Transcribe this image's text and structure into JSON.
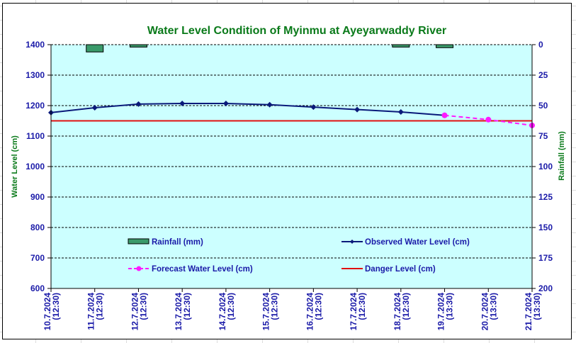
{
  "chart_data": {
    "type": "line",
    "title": "Water Level Condition of Myinmu at Ayeyarwaddy River",
    "ylabel": "Water Level (cm)",
    "y2label": "Rainfall (mm)",
    "ylim": [
      600,
      1400
    ],
    "y2lim": [
      0,
      200
    ],
    "y2_inverted": true,
    "yticks": [
      600,
      700,
      800,
      900,
      1000,
      1100,
      1200,
      1300,
      1400
    ],
    "y2ticks": [
      0,
      25,
      50,
      75,
      100,
      125,
      150,
      175,
      200
    ],
    "grid": true,
    "categories": [
      [
        "10.7.2024",
        "(12:30)"
      ],
      [
        "11.7.2024",
        "(12:30)"
      ],
      [
        "12.7.2024",
        "(12:30)"
      ],
      [
        "13.7.2024",
        "(12:30)"
      ],
      [
        "14.7.2024",
        "(12:30)"
      ],
      [
        "15.7.2024",
        "(12:30)"
      ],
      [
        "16.7.2024",
        "(12:30)"
      ],
      [
        "17.7.2024",
        "(12:30)"
      ],
      [
        "18.7.2024",
        "(12:30)"
      ],
      [
        "19.7.2024",
        "(13:30)"
      ],
      [
        "20.7.2024",
        "(13:30)"
      ],
      [
        "21.7.2024",
        "(13:30)"
      ]
    ],
    "series": [
      {
        "name": "Rainfall (mm)",
        "type": "bar",
        "axis": "right",
        "color": "#3a9a6a",
        "values": [
          0,
          6,
          2,
          0,
          0,
          0,
          0,
          0,
          2,
          2.5,
          null,
          null
        ]
      },
      {
        "name": "Observed Water Level (cm)",
        "type": "line",
        "color": "#0a1a7a",
        "marker": "diamond",
        "values": [
          1177,
          1193,
          1205,
          1207,
          1207,
          1203,
          1195,
          1187,
          1179,
          1168,
          null,
          null
        ]
      },
      {
        "name": "Forecast Water Level (cm)",
        "type": "line",
        "dashed": true,
        "color": "#ff1aff",
        "marker": "circle",
        "values": [
          null,
          null,
          null,
          null,
          null,
          null,
          null,
          null,
          null,
          1168,
          1154,
          1135
        ]
      },
      {
        "name": "Danger Level (cm)",
        "type": "line",
        "color": "#e01010",
        "values": [
          1150,
          1150,
          1150,
          1150,
          1150,
          1150,
          1150,
          1150,
          1150,
          1150,
          1150,
          1150
        ]
      }
    ],
    "legend": [
      {
        "label": "Rainfall (mm)",
        "position": "middle-left"
      },
      {
        "label": "Observed Water Level (cm)",
        "position": "middle-right"
      },
      {
        "label": "Forecast Water Level (cm)",
        "position": "lower-left"
      },
      {
        "label": "Danger Level (cm)",
        "position": "lower-right"
      }
    ],
    "colors": {
      "plot_bg": "#ccffff",
      "tick_text": "#1a1aa8",
      "title": "#0a7a1a"
    }
  }
}
